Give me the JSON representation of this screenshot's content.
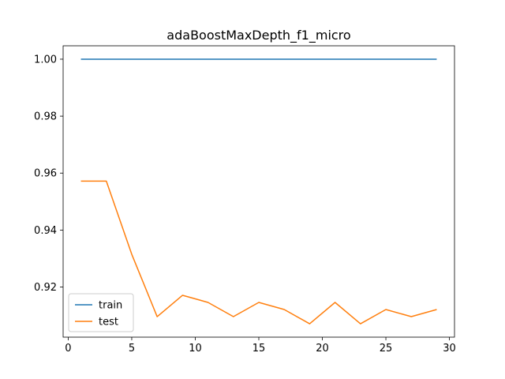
{
  "chart_data": {
    "type": "line",
    "title": "adaBoostMaxDepth_f1_micro",
    "xlabel": "",
    "ylabel": "",
    "x": [
      1,
      3,
      5,
      7,
      9,
      11,
      13,
      15,
      17,
      19,
      21,
      23,
      25,
      27,
      29
    ],
    "series": [
      {
        "name": "train",
        "color": "#1f77b4",
        "values": [
          1.0,
          1.0,
          1.0,
          1.0,
          1.0,
          1.0,
          1.0,
          1.0,
          1.0,
          1.0,
          1.0,
          1.0,
          1.0,
          1.0,
          1.0
        ]
      },
      {
        "name": "test",
        "color": "#ff7f0e",
        "values": [
          0.9572,
          0.9572,
          0.9315,
          0.9096,
          0.9171,
          0.9146,
          0.9096,
          0.9146,
          0.9121,
          0.9071,
          0.9146,
          0.9071,
          0.9121,
          0.9096,
          0.9121
        ]
      }
    ],
    "xlim": [
      -0.4,
      30.4
    ],
    "ylim": [
      0.9024,
      1.0047
    ],
    "xticks": [
      0,
      5,
      10,
      15,
      20,
      25,
      30
    ],
    "yticks": [
      0.92,
      0.94,
      0.96,
      0.98,
      1.0
    ],
    "xtick_labels": [
      "0",
      "5",
      "10",
      "15",
      "20",
      "25",
      "30"
    ],
    "ytick_labels": [
      "0.92",
      "0.94",
      "0.96",
      "0.98",
      "1.00"
    ],
    "grid": false,
    "legend_position": "lower-left"
  }
}
